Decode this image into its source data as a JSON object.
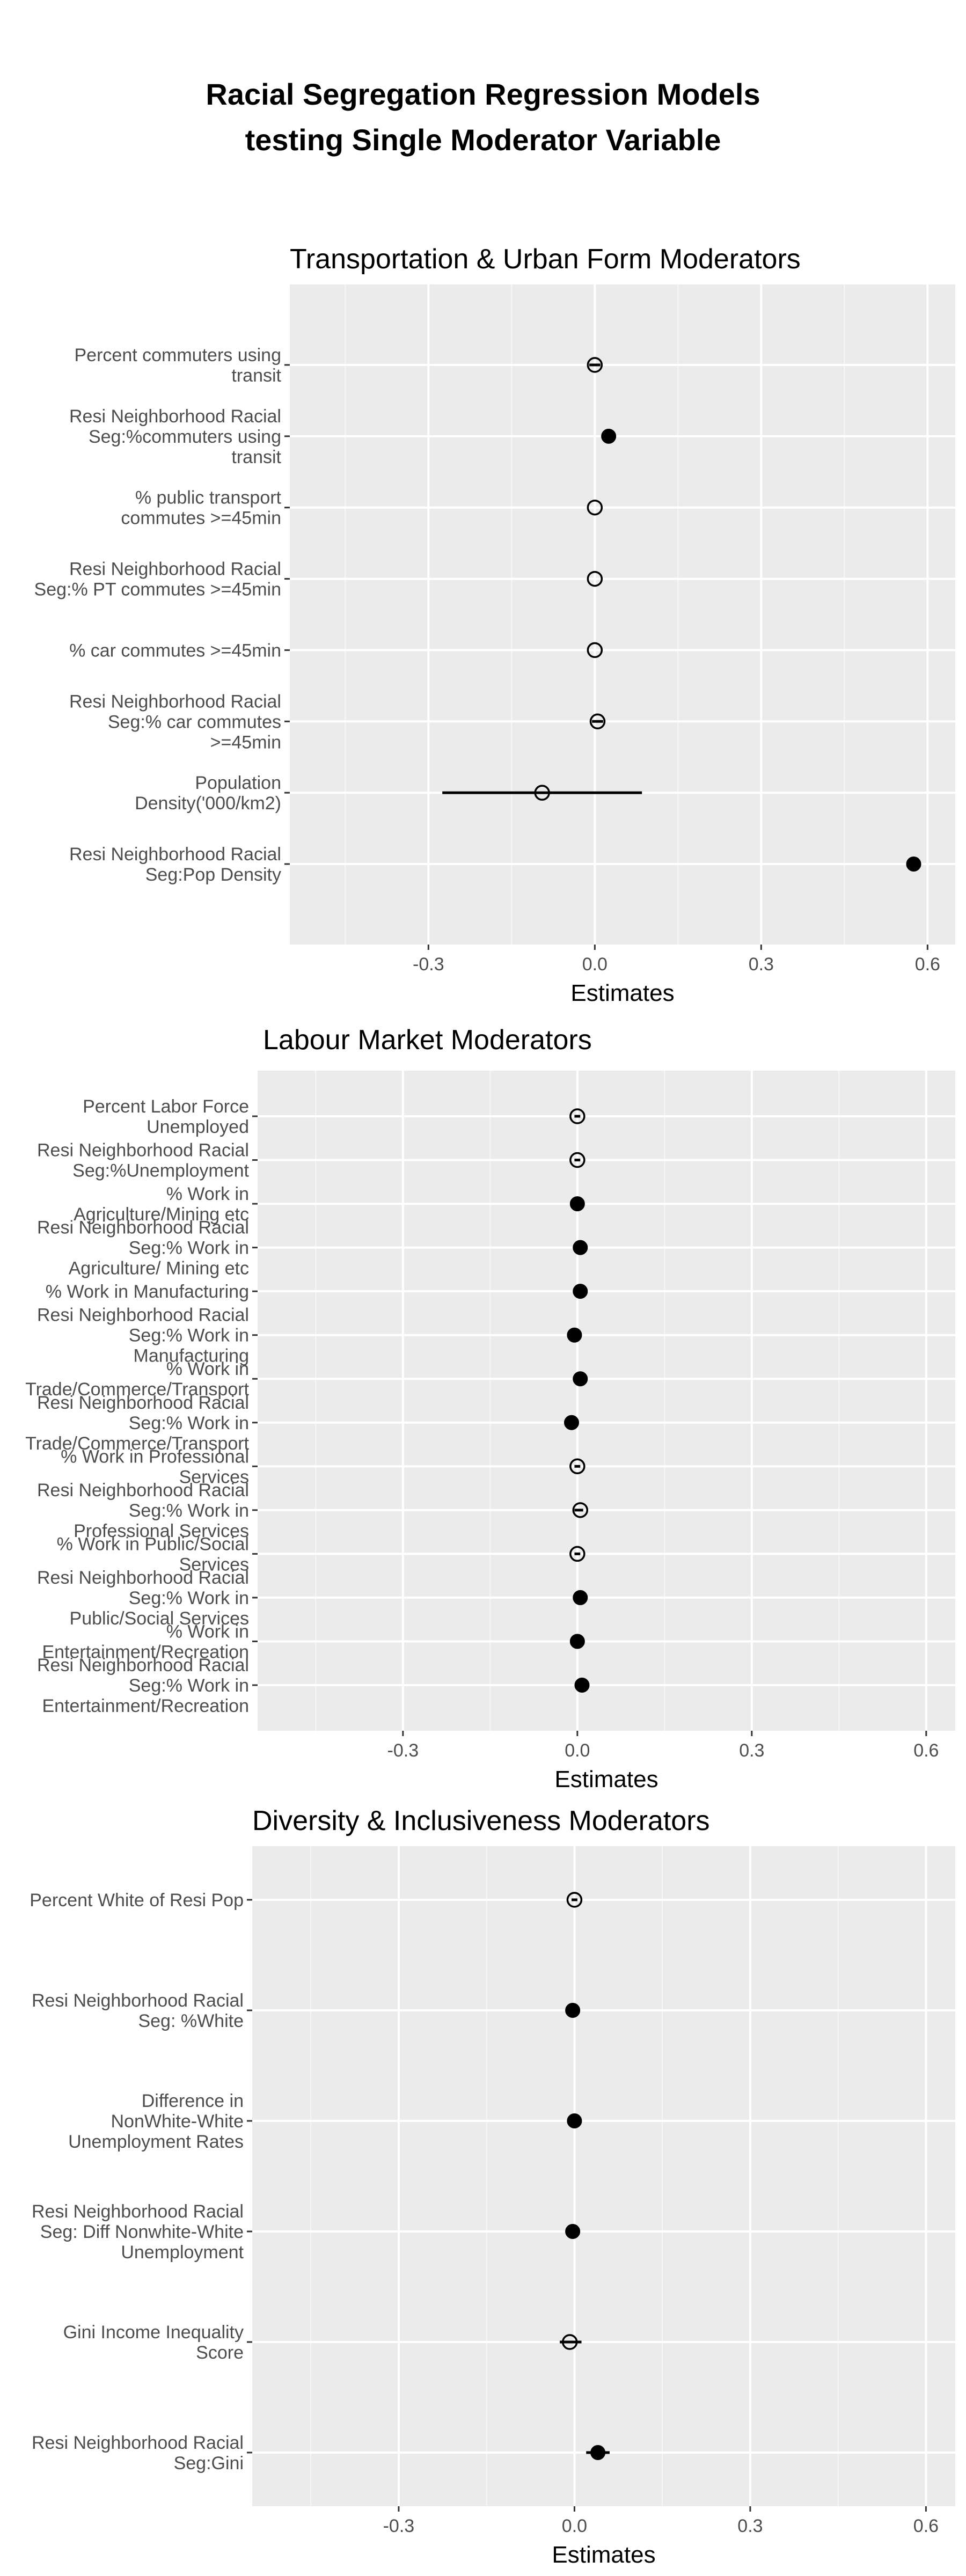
{
  "title_lines": [
    "Racial Segregation Regression Models",
    "testing Single Moderator Variable"
  ],
  "chart_data": [
    {
      "type": "scatter",
      "title": "Transportation & Urban Form Moderators",
      "xlabel": "Estimates",
      "xlim": [
        -0.55,
        0.65
      ],
      "xticks": [
        -0.3,
        0.0,
        0.3,
        0.6
      ],
      "xtick_labels": [
        "-0.3",
        "0.0",
        "0.3",
        "0.6"
      ],
      "grid": true,
      "points": [
        {
          "label": [
            "Percent commuters using",
            "transit"
          ],
          "estimate": 0.0,
          "ci": [
            -0.01,
            0.01
          ],
          "marker": "open"
        },
        {
          "label": [
            "Resi Neighborhood Racial",
            "Seg:%commuters using",
            "transit"
          ],
          "estimate": 0.025,
          "ci": [
            0.025,
            0.025
          ],
          "marker": "filled"
        },
        {
          "label": [
            "% public transport",
            "commutes >=45min"
          ],
          "estimate": 0.0,
          "ci": [
            0.0,
            0.0
          ],
          "marker": "open"
        },
        {
          "label": [
            "Resi Neighborhood Racial",
            "Seg:% PT commutes >=45min"
          ],
          "estimate": 0.0,
          "ci": [
            0.0,
            0.0
          ],
          "marker": "open"
        },
        {
          "label": [
            "% car commutes >=45min"
          ],
          "estimate": 0.0,
          "ci": [
            0.0,
            0.0
          ],
          "marker": "open"
        },
        {
          "label": [
            "Resi Neighborhood Racial",
            "Seg:% car commutes",
            ">=45min"
          ],
          "estimate": 0.005,
          "ci": [
            -0.005,
            0.015
          ],
          "marker": "open"
        },
        {
          "label": [
            "Population",
            "Density('000/km2)"
          ],
          "estimate": -0.095,
          "ci": [
            -0.275,
            0.085
          ],
          "marker": "open"
        },
        {
          "label": [
            "Resi Neighborhood Racial",
            "Seg:Pop Density"
          ],
          "estimate": 0.575,
          "ci": [
            0.575,
            0.575
          ],
          "marker": "filled"
        }
      ]
    },
    {
      "type": "scatter",
      "title": "Labour Market Moderators",
      "xlabel": "Estimates",
      "xlim": [
        -0.55,
        0.65
      ],
      "xticks": [
        -0.3,
        0.0,
        0.3,
        0.6
      ],
      "xtick_labels": [
        "-0.3",
        "0.0",
        "0.3",
        "0.6"
      ],
      "grid": true,
      "points": [
        {
          "label": [
            "Percent Labor Force",
            "Unemployed"
          ],
          "estimate": 0.0,
          "ci": [
            -0.005,
            0.005
          ],
          "marker": "open"
        },
        {
          "label": [
            "Resi Neighborhood Racial",
            "Seg:%Unemployment"
          ],
          "estimate": 0.0,
          "ci": [
            -0.005,
            0.005
          ],
          "marker": "open"
        },
        {
          "label": [
            "% Work in",
            "Agriculture/Mining etc"
          ],
          "estimate": 0.0,
          "ci": [
            0.0,
            0.0
          ],
          "marker": "filled"
        },
        {
          "label": [
            "Resi Neighborhood Racial",
            "Seg:% Work in",
            "Agriculture/ Mining etc"
          ],
          "estimate": 0.005,
          "ci": [
            0.005,
            0.005
          ],
          "marker": "filled"
        },
        {
          "label": [
            "% Work in Manufacturing"
          ],
          "estimate": 0.005,
          "ci": [
            0.005,
            0.005
          ],
          "marker": "filled"
        },
        {
          "label": [
            "Resi Neighborhood Racial",
            "Seg:% Work in",
            "Manufacturing"
          ],
          "estimate": -0.005,
          "ci": [
            -0.005,
            -0.005
          ],
          "marker": "filled"
        },
        {
          "label": [
            "% Work in",
            "Trade/Commerce/Transport"
          ],
          "estimate": 0.005,
          "ci": [
            0.005,
            0.005
          ],
          "marker": "filled"
        },
        {
          "label": [
            "Resi Neighborhood Racial",
            "Seg:% Work in",
            "Trade/Commerce/Transport"
          ],
          "estimate": -0.01,
          "ci": [
            -0.01,
            -0.01
          ],
          "marker": "filled"
        },
        {
          "label": [
            "% Work in Professional",
            "Services"
          ],
          "estimate": 0.0,
          "ci": [
            -0.005,
            0.005
          ],
          "marker": "open"
        },
        {
          "label": [
            "Resi Neighborhood Racial",
            "Seg:% Work in",
            "Professional Services"
          ],
          "estimate": 0.005,
          "ci": [
            -0.005,
            0.01
          ],
          "marker": "open"
        },
        {
          "label": [
            "% Work in Public/Social",
            "Services"
          ],
          "estimate": 0.0,
          "ci": [
            -0.005,
            0.005
          ],
          "marker": "open"
        },
        {
          "label": [
            "Resi Neighborhood Racial",
            "Seg:% Work in",
            "Public/Social Services"
          ],
          "estimate": 0.005,
          "ci": [
            0.005,
            0.005
          ],
          "marker": "filled"
        },
        {
          "label": [
            "% Work in",
            "Entertainment/Recreation"
          ],
          "estimate": 0.0,
          "ci": [
            0.0,
            0.0
          ],
          "marker": "filled"
        },
        {
          "label": [
            "Resi Neighborhood Racial",
            "Seg:% Work in",
            "Entertainment/Recreation"
          ],
          "estimate": 0.008,
          "ci": [
            0.008,
            0.008
          ],
          "marker": "filled"
        }
      ]
    },
    {
      "type": "scatter",
      "title": "Diversity & Inclusiveness Moderators",
      "xlabel": "Estimates",
      "xlim": [
        -0.55,
        0.65
      ],
      "xticks": [
        -0.3,
        0.0,
        0.3,
        0.6
      ],
      "xtick_labels": [
        "-0.3",
        "0.0",
        "0.3",
        "0.6"
      ],
      "grid": true,
      "points": [
        {
          "label": [
            "Percent White of Resi Pop"
          ],
          "estimate": 0.0,
          "ci": [
            -0.005,
            0.005
          ],
          "marker": "open"
        },
        {
          "label": [
            "Resi Neighborhood Racial",
            "Seg: %White"
          ],
          "estimate": -0.003,
          "ci": [
            -0.003,
            -0.003
          ],
          "marker": "filled"
        },
        {
          "label": [
            "Difference in",
            "NonWhite-White",
            "Unemployment Rates"
          ],
          "estimate": 0.0,
          "ci": [
            0.0,
            0.0
          ],
          "marker": "filled"
        },
        {
          "label": [
            "Resi Neighborhood Racial",
            "Seg: Diff Nonwhite-White",
            "Unemployment"
          ],
          "estimate": -0.003,
          "ci": [
            -0.003,
            -0.003
          ],
          "marker": "filled"
        },
        {
          "label": [
            "Gini Income Inequality",
            "Score"
          ],
          "estimate": -0.008,
          "ci": [
            -0.025,
            0.012
          ],
          "marker": "open"
        },
        {
          "label": [
            "Resi Neighborhood Racial",
            "Seg:Gini"
          ],
          "estimate": 0.04,
          "ci": [
            0.02,
            0.06
          ],
          "marker": "filled"
        }
      ]
    }
  ]
}
